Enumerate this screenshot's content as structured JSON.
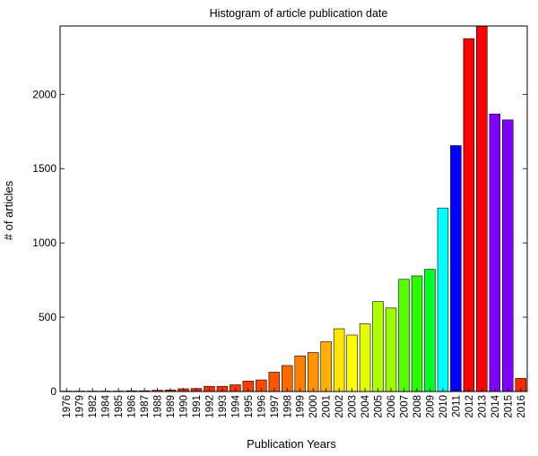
{
  "chart_data": {
    "type": "bar",
    "title": "Histogram of article publication date",
    "xlabel": "Publication Years",
    "ylabel": "# of articles",
    "ylim": [
      0,
      2460
    ],
    "yticks": [
      0,
      500,
      1000,
      1500,
      2000
    ],
    "grid": false,
    "legend": "none",
    "categories": [
      "1976",
      "1979",
      "1982",
      "1984",
      "1985",
      "1986",
      "1987",
      "1988",
      "1989",
      "1990",
      "1991",
      "1992",
      "1993",
      "1994",
      "1995",
      "1996",
      "1997",
      "1998",
      "1999",
      "2000",
      "2001",
      "2002",
      "2003",
      "2004",
      "2005",
      "2006",
      "2007",
      "2008",
      "2009",
      "2010",
      "2011",
      "2012",
      "2013",
      "2014",
      "2015",
      "2016"
    ],
    "values": [
      3,
      3,
      3,
      3,
      3,
      5,
      5,
      8,
      10,
      18,
      20,
      35,
      35,
      45,
      70,
      78,
      130,
      175,
      240,
      262,
      335,
      422,
      380,
      455,
      605,
      562,
      755,
      778,
      822,
      1235,
      1655,
      2375,
      2460,
      1868,
      1828,
      88
    ],
    "colors": [
      "#ff0000",
      "#ff0000",
      "#ff0000",
      "#ff0000",
      "#ff0000",
      "#ff0000",
      "#ff0000",
      "#ff0000",
      "#ff0000",
      "#ff2200",
      "#ff2200",
      "#ff2a00",
      "#ff2e00",
      "#ff3300",
      "#ff3d00",
      "#ff4700",
      "#ff5500",
      "#ff6a00",
      "#ff8000",
      "#ff9400",
      "#ffb000",
      "#ffe600",
      "#ffff00",
      "#e6ff00",
      "#b0ff00",
      "#99ff00",
      "#55ff00",
      "#2aff00",
      "#00ff22",
      "#00ffff",
      "#0000ff",
      "#ff0000",
      "#ff0000",
      "#8000ff",
      "#8000ff",
      "#ff2a00"
    ]
  }
}
